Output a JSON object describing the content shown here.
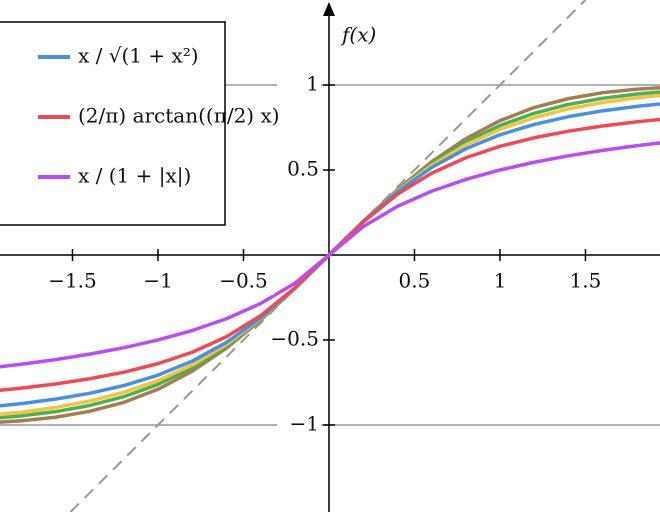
{
  "chart_data": {
    "type": "line",
    "y_axis_label": "f(x)",
    "x": [
      -2.0,
      -1.8,
      -1.6,
      -1.4,
      -1.2,
      -1.0,
      -0.8,
      -0.6,
      -0.4,
      -0.2,
      0,
      0.2,
      0.4,
      0.6,
      0.8,
      1.0,
      1.2,
      1.4,
      1.6,
      1.8,
      2.0
    ],
    "series": [
      {
        "color": "#a67c52",
        "values": [
          -0.9876,
          -0.9753,
          -0.9548,
          -0.9198,
          -0.8673,
          -0.79,
          -0.6837,
          -0.5479,
          -0.3838,
          -0.1979,
          0,
          0.1979,
          0.3838,
          0.5479,
          0.6837,
          0.79,
          0.8673,
          0.9198,
          0.9548,
          0.9753,
          0.9876
        ]
      },
      {
        "color": "#4caf50",
        "values": [
          -0.964,
          -0.9468,
          -0.9217,
          -0.8854,
          -0.8337,
          -0.7616,
          -0.664,
          -0.537,
          -0.3799,
          -0.1974,
          0,
          0.1974,
          0.3799,
          0.537,
          0.664,
          0.7616,
          0.8337,
          0.8854,
          0.9217,
          0.9468,
          0.964
        ]
      },
      {
        "color": "#f2c443",
        "values": [
          -0.9445,
          -0.9252,
          -0.897,
          -0.8597,
          -0.808,
          -0.7389,
          -0.6476,
          -0.5266,
          -0.3761,
          -0.1968,
          0,
          0.1968,
          0.3761,
          0.5266,
          0.6476,
          0.7389,
          0.808,
          0.8597,
          0.897,
          0.9252,
          0.9445
        ]
      },
      {
        "name": "x / √(1 + x²)",
        "color": "#4a90e2",
        "values": [
          -0.8944,
          -0.8742,
          -0.848,
          -0.8137,
          -0.7682,
          -0.7071,
          -0.6247,
          -0.5145,
          -0.3714,
          -0.1961,
          0,
          0.1961,
          0.3714,
          0.5145,
          0.6247,
          0.7071,
          0.7682,
          0.8137,
          0.848,
          0.8742,
          0.8944
        ]
      },
      {
        "name": "(2/π) arctan((π/2) x)",
        "color": "#ee4a55",
        "values": [
          -0.8038,
          -0.7834,
          -0.759,
          -0.7283,
          -0.6895,
          -0.6391,
          -0.5721,
          -0.4812,
          -0.3571,
          -0.1938,
          0,
          0.1938,
          0.3571,
          0.4812,
          0.5721,
          0.6391,
          0.6895,
          0.7283,
          0.759,
          0.7834,
          0.8038
        ]
      },
      {
        "name": "x / (1 + |x|)",
        "color": "#b84ef0",
        "values": [
          -0.6667,
          -0.6429,
          -0.6154,
          -0.5833,
          -0.5455,
          -0.5,
          -0.4444,
          -0.375,
          -0.2857,
          -0.1667,
          0,
          0.1667,
          0.2857,
          0.375,
          0.4444,
          0.5,
          0.5455,
          0.5833,
          0.6154,
          0.6429,
          0.6667
        ]
      }
    ],
    "xlim": [
      -1.924,
      1.936
    ],
    "ylim": [
      -1.512,
      1.5
    ],
    "xticks": [
      {
        "value": -1.5,
        "label": "−1.5"
      },
      {
        "value": -1,
        "label": "−1"
      },
      {
        "value": -0.5,
        "label": "−0.5"
      },
      0.5,
      1,
      1.5
    ],
    "yticks": [
      {
        "value": -1,
        "label": "−1"
      },
      {
        "value": -0.5,
        "label": "−0.5"
      },
      0.5,
      1
    ],
    "hlines": [
      -1,
      1
    ],
    "diagonal": true
  }
}
